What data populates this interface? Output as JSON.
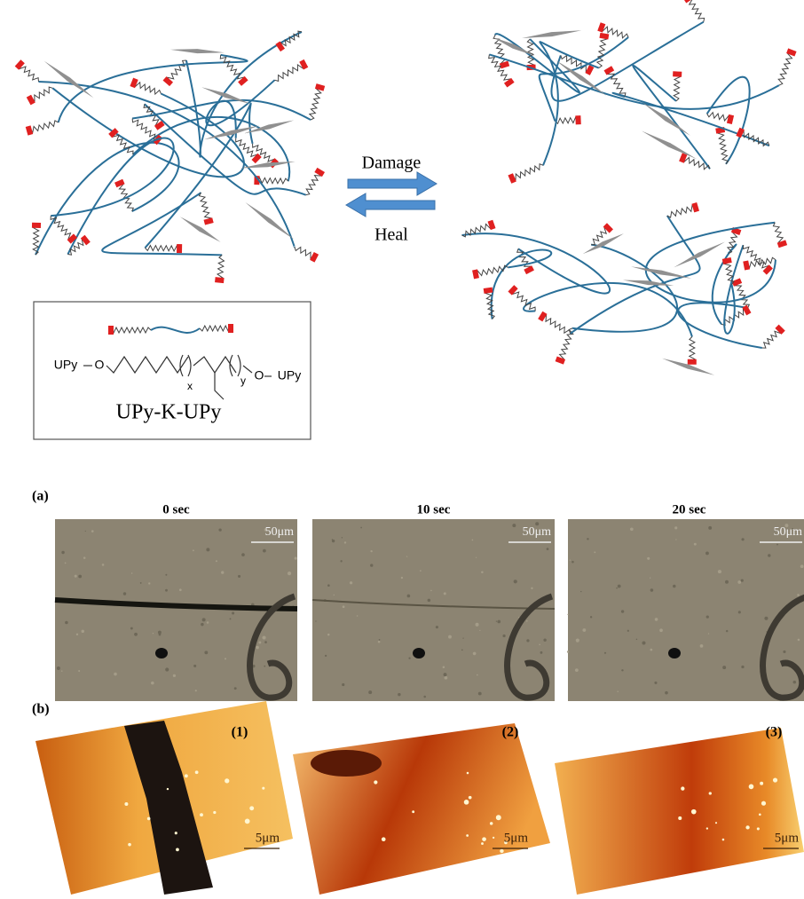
{
  "scheme": {
    "forward_label": "Damage",
    "reverse_label": "Heal",
    "structure": {
      "left_group": "UPy",
      "left_link": "O",
      "x": "x",
      "y": "y",
      "right_link": "O",
      "right_group": "UPy",
      "name": "UPy-K-UPy"
    }
  },
  "panel_a": {
    "label": "(a)",
    "frames": [
      {
        "time": "0 sec",
        "scale": "50μm"
      },
      {
        "time": "10 sec",
        "scale": "50μm"
      },
      {
        "time": "20 sec",
        "scale": "50μm"
      }
    ]
  },
  "panel_b": {
    "label": "(b)",
    "frames": [
      {
        "index": "(1)",
        "scale": "5μm"
      },
      {
        "index": "(2)",
        "scale": "5μm"
      },
      {
        "index": "(3)",
        "scale": "5μm"
      }
    ]
  }
}
